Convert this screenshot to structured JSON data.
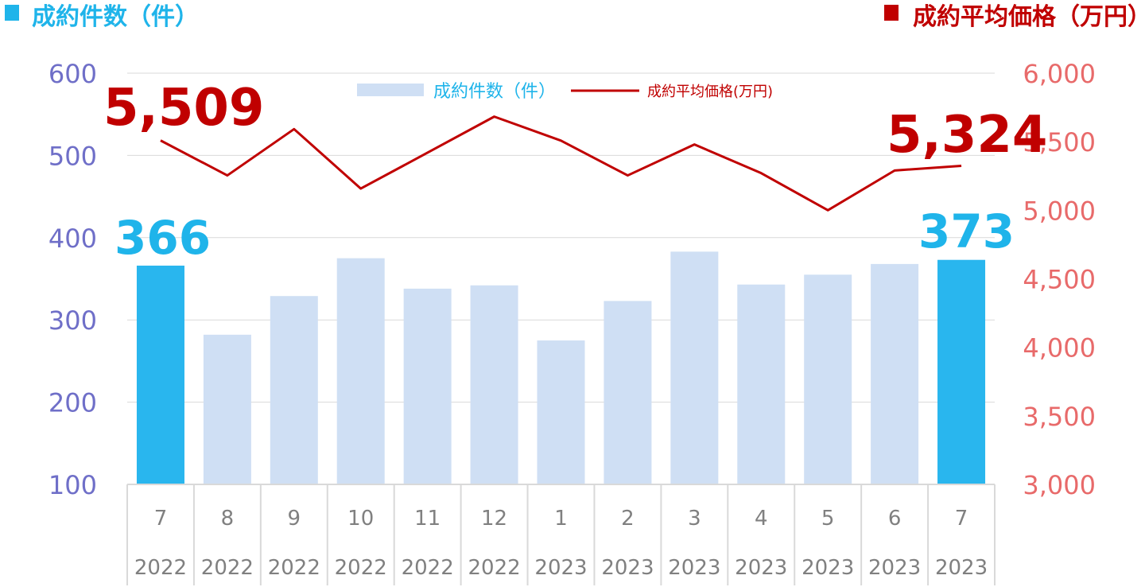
{
  "headers": {
    "left": "成約件数（件）",
    "right": "成約平均価格（万円）",
    "left_color": "#1fb4ea",
    "right_color": "#c00000"
  },
  "legend": {
    "bar_label": "成約件数（件）",
    "line_label": "成約平均価格(万円)"
  },
  "callouts": {
    "line_first": "5,509",
    "line_last": "5,324",
    "bar_first": "366",
    "bar_last": "373"
  },
  "chart_data": {
    "type": "bar",
    "x_months": [
      "7",
      "8",
      "9",
      "10",
      "11",
      "12",
      "1",
      "2",
      "3",
      "4",
      "5",
      "6",
      "7"
    ],
    "x_years": [
      "2022",
      "2022",
      "2022",
      "2022",
      "2022",
      "2022",
      "2023",
      "2023",
      "2023",
      "2023",
      "2023",
      "2023",
      "2023"
    ],
    "series": [
      {
        "name": "成約件数（件）",
        "type": "bar",
        "axis": "left",
        "values": [
          366,
          282,
          329,
          375,
          338,
          342,
          275,
          323,
          383,
          343,
          355,
          368,
          373
        ],
        "highlight": [
          0,
          12
        ],
        "color": "#cfdff4",
        "highlight_color": "#29b6ee"
      },
      {
        "name": "成約平均価格(万円)",
        "type": "line",
        "axis": "right",
        "values": [
          5509,
          5254,
          5592,
          5158,
          5420,
          5683,
          5508,
          5254,
          5480,
          5271,
          5000,
          5290,
          5324
        ],
        "color": "#c00000"
      }
    ],
    "y_left": {
      "min": 100,
      "max": 600,
      "ticks": [
        "100",
        "200",
        "300",
        "400",
        "500",
        "600"
      ]
    },
    "y_right": {
      "min": 3000,
      "max": 6000,
      "ticks": [
        "3,000",
        "3,500",
        "4,000",
        "4,500",
        "5,000",
        "5,500",
        "6,000"
      ]
    },
    "grid": true,
    "legend_position": "top-center"
  }
}
